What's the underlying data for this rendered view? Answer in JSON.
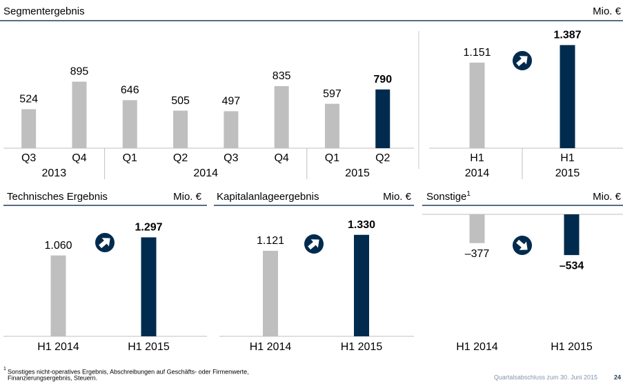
{
  "chart_data": [
    {
      "type": "bar",
      "title": "Segmentergebnis",
      "unit": "Mio. €",
      "categories": [
        "Q3",
        "Q4",
        "Q1",
        "Q2",
        "Q3",
        "Q4",
        "Q1",
        "Q2"
      ],
      "groups": [
        "2013",
        "2014",
        "2015"
      ],
      "values": [
        524,
        895,
        646,
        505,
        497,
        835,
        597,
        790
      ],
      "colors": [
        "#bfbfbf",
        "#bfbfbf",
        "#bfbfbf",
        "#bfbfbf",
        "#bfbfbf",
        "#bfbfbf",
        "#bfbfbf",
        "#002b4e"
      ],
      "ylim": [
        0,
        1400
      ]
    },
    {
      "type": "bar",
      "categories": [
        [
          "H1",
          "2014"
        ],
        [
          "H1",
          "2015"
        ]
      ],
      "values": [
        1151,
        1387
      ],
      "value_labels": [
        "1.151",
        "1.387"
      ],
      "colors": [
        "#bfbfbf",
        "#002b4e"
      ],
      "ylim": [
        0,
        1400
      ]
    },
    {
      "type": "bar",
      "title": "Technisches Ergebnis",
      "unit": "Mio. €",
      "categories": [
        "H1 2014",
        "H1 2015"
      ],
      "values": [
        1060,
        1297
      ],
      "value_labels": [
        "1.060",
        "1.297"
      ],
      "colors": [
        "#bfbfbf",
        "#002b4e"
      ],
      "ylim": [
        0,
        1400
      ]
    },
    {
      "type": "bar",
      "title": "Kapitalanlageergebnis",
      "unit": "Mio. €",
      "categories": [
        "H1 2014",
        "H1 2015"
      ],
      "values": [
        1121,
        1330
      ],
      "value_labels": [
        "1.121",
        "1.330"
      ],
      "colors": [
        "#bfbfbf",
        "#002b4e"
      ],
      "ylim": [
        0,
        1400
      ]
    },
    {
      "type": "bar",
      "title": "Sonstige",
      "title_note": "1",
      "unit": "Mio. €",
      "categories": [
        "H1 2014",
        "H1 2015"
      ],
      "values": [
        -377,
        -534
      ],
      "value_labels": [
        "–377",
        "–534"
      ],
      "colors": [
        "#bfbfbf",
        "#002b4e"
      ],
      "ylim": [
        -1400,
        0
      ]
    }
  ],
  "footnote": {
    "marker": "1",
    "lines": [
      "Sonstiges nicht-operatives Ergebnis, Abschreibungen auf Geschäfts- oder Firmenwerte,",
      "Finanzierungsergebnis, Steuern."
    ]
  },
  "footer": {
    "text": "Quartalsabschluss zum 30. Juni 2015",
    "page": "24"
  }
}
